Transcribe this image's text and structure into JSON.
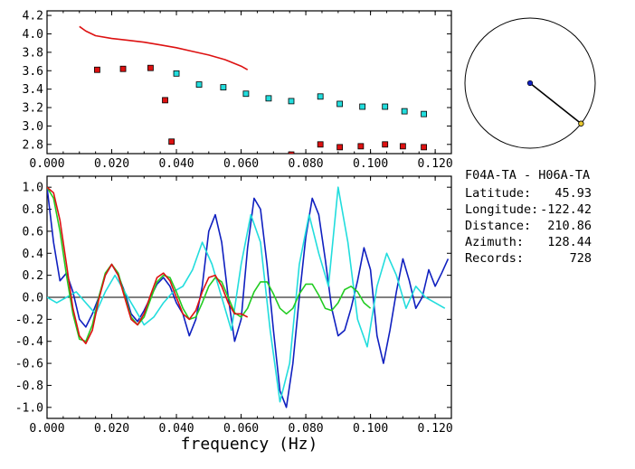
{
  "header": {
    "pair": "F04A-TA  - H06A-TA",
    "latitude_label": "Latitude:",
    "latitude": "45.93",
    "longitude_label": "Longitude:",
    "longitude": "-122.42",
    "distance_label": "Distance:",
    "distance": "210.86",
    "azimuth_label": "Azimuth:",
    "azimuth": "128.44",
    "records_label": "Records:",
    "records": "728"
  },
  "azimuth_deg": 128.44,
  "colors": {
    "red": "#dd1111",
    "cyan": "#22dddd",
    "blue": "#1020c0",
    "green": "#22cc22",
    "axis": "#000000"
  },
  "chart_data": [
    {
      "type": "scatter",
      "title": "",
      "xlabel": "",
      "ylabel": "",
      "xlim": [
        0.0,
        0.125
      ],
      "ylim": [
        2.7,
        4.25
      ],
      "x_ticks": [
        "0.000",
        "0.020",
        "0.040",
        "0.060",
        "0.080",
        "0.100",
        "0.120"
      ],
      "y_ticks": [
        "2.8",
        "3.0",
        "3.2",
        "3.4",
        "3.6",
        "3.8",
        "4.0",
        "4.2"
      ],
      "series": [
        {
          "type": "line",
          "color": "red",
          "x": [
            0.01,
            0.012,
            0.015,
            0.02,
            0.025,
            0.03,
            0.035,
            0.04,
            0.045,
            0.05,
            0.055,
            0.06,
            0.062
          ],
          "y": [
            4.08,
            4.03,
            3.98,
            3.95,
            3.93,
            3.91,
            3.88,
            3.85,
            3.81,
            3.77,
            3.72,
            3.65,
            3.61
          ]
        },
        {
          "type": "markers",
          "color": "red",
          "x": [
            0.0155,
            0.0235,
            0.032,
            0.0365,
            0.0385,
            0.0755,
            0.0845,
            0.0905,
            0.097,
            0.1045,
            0.11,
            0.1165
          ],
          "y": [
            3.61,
            3.62,
            3.63,
            3.28,
            2.83,
            2.69,
            2.8,
            2.77,
            2.78,
            2.8,
            2.78,
            2.77
          ]
        },
        {
          "type": "markers",
          "color": "cyan",
          "x": [
            0.04,
            0.047,
            0.0545,
            0.0615,
            0.0685,
            0.0755,
            0.0845,
            0.0905,
            0.0975,
            0.1045,
            0.1105,
            0.1165
          ],
          "y": [
            3.57,
            3.45,
            3.42,
            3.35,
            3.3,
            3.27,
            3.32,
            3.24,
            3.21,
            3.21,
            3.16,
            3.13
          ]
        }
      ]
    },
    {
      "type": "line",
      "title": "",
      "xlabel": "frequency (Hz)",
      "ylabel": "",
      "xlim": [
        0.0,
        0.125
      ],
      "ylim": [
        -1.1,
        1.1
      ],
      "x_ticks": [
        "0.000",
        "0.020",
        "0.040",
        "0.060",
        "0.080",
        "0.100",
        "0.120"
      ],
      "y_ticks": [
        "1.0",
        "0.8",
        "0.6",
        "0.4",
        "0.2",
        "0.0",
        "-0.2",
        "-0.4",
        "-0.6",
        "-0.8",
        "-1.0"
      ],
      "series": [
        {
          "color": "blue",
          "x": [
            0.0,
            0.002,
            0.004,
            0.006,
            0.008,
            0.01,
            0.012,
            0.014,
            0.016,
            0.018,
            0.02,
            0.022,
            0.024,
            0.026,
            0.028,
            0.03,
            0.032,
            0.034,
            0.036,
            0.038,
            0.04,
            0.042,
            0.044,
            0.046,
            0.048,
            0.05,
            0.052,
            0.054,
            0.056,
            0.058,
            0.06,
            0.062,
            0.064,
            0.066,
            0.068,
            0.07,
            0.072,
            0.074,
            0.076,
            0.078,
            0.08,
            0.082,
            0.084,
            0.086,
            0.088,
            0.09,
            0.092,
            0.094,
            0.096,
            0.098,
            0.1,
            0.102,
            0.104,
            0.106,
            0.108,
            0.11,
            0.112,
            0.114,
            0.116,
            0.118,
            0.12,
            0.122,
            0.124
          ],
          "y": [
            1.0,
            0.5,
            0.15,
            0.22,
            0.05,
            -0.2,
            -0.27,
            -0.15,
            0.0,
            0.2,
            0.3,
            0.2,
            0.05,
            -0.15,
            -0.22,
            -0.12,
            0.0,
            0.12,
            0.18,
            0.1,
            -0.05,
            -0.15,
            -0.35,
            -0.2,
            0.1,
            0.6,
            0.75,
            0.5,
            0.0,
            -0.4,
            -0.2,
            0.45,
            0.9,
            0.8,
            0.3,
            -0.3,
            -0.85,
            -1.0,
            -0.6,
            0.0,
            0.55,
            0.9,
            0.75,
            0.35,
            -0.1,
            -0.35,
            -0.3,
            -0.1,
            0.15,
            0.45,
            0.25,
            -0.35,
            -0.6,
            -0.3,
            0.05,
            0.35,
            0.15,
            -0.1,
            0.0,
            0.25,
            0.1,
            0.22,
            0.35
          ]
        },
        {
          "color": "cyan",
          "x": [
            0.0,
            0.003,
            0.006,
            0.009,
            0.012,
            0.015,
            0.018,
            0.021,
            0.024,
            0.027,
            0.03,
            0.033,
            0.036,
            0.039,
            0.042,
            0.045,
            0.048,
            0.051,
            0.054,
            0.057,
            0.06,
            0.063,
            0.066,
            0.069,
            0.072,
            0.075,
            0.078,
            0.081,
            0.084,
            0.087,
            0.09,
            0.093,
            0.096,
            0.099,
            0.102,
            0.105,
            0.108,
            0.111,
            0.114,
            0.117,
            0.12,
            0.123
          ],
          "y": [
            0.0,
            -0.05,
            0.0,
            0.05,
            -0.05,
            -0.15,
            0.05,
            0.2,
            0.05,
            -0.1,
            -0.25,
            -0.18,
            -0.05,
            0.05,
            0.1,
            0.25,
            0.5,
            0.3,
            0.0,
            -0.3,
            0.3,
            0.75,
            0.5,
            -0.3,
            -0.95,
            -0.6,
            0.3,
            0.75,
            0.4,
            0.1,
            1.0,
            0.5,
            -0.2,
            -0.45,
            0.1,
            0.4,
            0.2,
            -0.1,
            0.1,
            0.0,
            -0.05,
            -0.1
          ]
        },
        {
          "color": "green",
          "x": [
            0.0,
            0.002,
            0.004,
            0.006,
            0.008,
            0.01,
            0.012,
            0.014,
            0.016,
            0.018,
            0.02,
            0.022,
            0.024,
            0.026,
            0.028,
            0.03,
            0.032,
            0.034,
            0.036,
            0.038,
            0.04,
            0.042,
            0.044,
            0.046,
            0.048,
            0.05,
            0.052,
            0.054,
            0.056,
            0.058,
            0.06,
            0.062,
            0.064,
            0.066,
            0.068,
            0.07,
            0.072,
            0.074,
            0.076,
            0.078,
            0.08,
            0.082,
            0.084,
            0.086,
            0.088,
            0.09,
            0.092,
            0.094,
            0.096,
            0.098,
            0.1
          ],
          "y": [
            1.0,
            0.9,
            0.6,
            0.2,
            -0.15,
            -0.38,
            -0.4,
            -0.25,
            0.0,
            0.22,
            0.3,
            0.22,
            0.02,
            -0.18,
            -0.25,
            -0.18,
            -0.02,
            0.14,
            0.2,
            0.18,
            0.05,
            -0.1,
            -0.2,
            -0.18,
            -0.05,
            0.1,
            0.18,
            0.14,
            0.0,
            -0.14,
            -0.18,
            -0.1,
            0.05,
            0.14,
            0.14,
            0.03,
            -0.1,
            -0.15,
            -0.1,
            0.03,
            0.12,
            0.12,
            0.02,
            -0.1,
            -0.12,
            -0.05,
            0.07,
            0.1,
            0.05,
            -0.05,
            -0.1
          ]
        },
        {
          "color": "red",
          "x": [
            0.0,
            0.002,
            0.004,
            0.006,
            0.008,
            0.01,
            0.012,
            0.014,
            0.016,
            0.018,
            0.02,
            0.022,
            0.024,
            0.026,
            0.028,
            0.03,
            0.032,
            0.034,
            0.036,
            0.038,
            0.04,
            0.042,
            0.044,
            0.046,
            0.048,
            0.05,
            0.052,
            0.054,
            0.056,
            0.058,
            0.06,
            0.062
          ],
          "y": [
            1.0,
            0.95,
            0.7,
            0.3,
            -0.1,
            -0.35,
            -0.42,
            -0.3,
            -0.02,
            0.2,
            0.3,
            0.2,
            0.0,
            -0.2,
            -0.25,
            -0.15,
            0.02,
            0.18,
            0.22,
            0.15,
            0.0,
            -0.15,
            -0.2,
            -0.12,
            0.05,
            0.18,
            0.2,
            0.1,
            -0.05,
            -0.15,
            -0.15,
            -0.18
          ]
        }
      ]
    }
  ]
}
